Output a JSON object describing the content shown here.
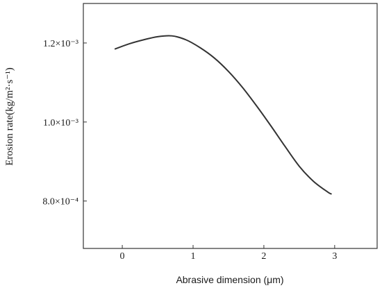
{
  "chart_data": {
    "type": "line",
    "title": "",
    "xlabel": "Abrasive dimension (μm)",
    "ylabel": "Erosion rate(kg/m²·s⁻¹)",
    "xlim": [
      -0.55,
      3.6
    ],
    "ylim": [
      0.00068,
      0.0013
    ],
    "grid": false,
    "legend": "none",
    "x_ticks": [
      {
        "value": 0,
        "label": "0"
      },
      {
        "value": 1,
        "label": "1"
      },
      {
        "value": 2,
        "label": "2"
      },
      {
        "value": 3,
        "label": "3"
      }
    ],
    "y_ticks": [
      {
        "value": 0.0008,
        "label": "8.0×10⁻⁴"
      },
      {
        "value": 0.001,
        "label": "1.0×10⁻³"
      },
      {
        "value": 0.0012,
        "label": "1.2×10⁻³"
      }
    ],
    "series": [
      {
        "color": "#333333",
        "x": [
          -0.1,
          0.1,
          0.3,
          0.5,
          0.7,
          0.9,
          1.1,
          1.3,
          1.5,
          1.7,
          1.9,
          2.1,
          2.3,
          2.5,
          2.7,
          2.9,
          2.95
        ],
        "y": [
          0.001185,
          0.001198,
          0.001208,
          0.001216,
          0.001218,
          0.001208,
          0.001188,
          0.001162,
          0.001128,
          0.001087,
          0.00104,
          0.00099,
          0.000938,
          0.000888,
          0.00085,
          0.000823,
          0.000818
        ]
      }
    ]
  }
}
